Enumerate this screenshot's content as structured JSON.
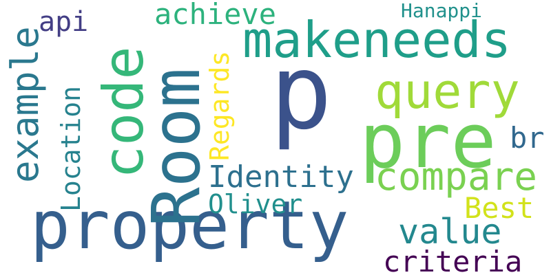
{
  "words": [
    {
      "key": "p",
      "text": "p",
      "color": "#3b528b"
    },
    {
      "key": "property",
      "text": "property",
      "color": "#355f8d"
    },
    {
      "key": "pre",
      "text": "pre",
      "color": "#6ccd5a"
    },
    {
      "key": "room",
      "text": "Room",
      "color": "#2c728e"
    },
    {
      "key": "code",
      "text": "code",
      "color": "#35b779"
    },
    {
      "key": "makeneeds",
      "text": "makeneeds",
      "color": "#1f9e89"
    },
    {
      "key": "query",
      "text": "query",
      "color": "#a0da39"
    },
    {
      "key": "example",
      "text": "example",
      "color": "#2a788e"
    },
    {
      "key": "compare",
      "text": "compare",
      "color": "#7ad151"
    },
    {
      "key": "value",
      "text": "value",
      "color": "#23888e"
    },
    {
      "key": "location",
      "text": "Location",
      "color": "#26828e"
    },
    {
      "key": "identity",
      "text": "Identity",
      "color": "#2d708e"
    },
    {
      "key": "regards",
      "text": "Regards",
      "color": "#fde725"
    },
    {
      "key": "achieve",
      "text": "achieve",
      "color": "#2db27d"
    },
    {
      "key": "api",
      "text": "api",
      "color": "#433e85"
    },
    {
      "key": "oliver",
      "text": "Oliver",
      "color": "#218f8d"
    },
    {
      "key": "best",
      "text": "Best",
      "color": "#d2e21b"
    },
    {
      "key": "criteria",
      "text": "criteria",
      "color": "#440154"
    },
    {
      "key": "br",
      "text": "br",
      "color": "#31688e"
    },
    {
      "key": "hanappi",
      "text": "Hanappi",
      "color": "#21918c"
    }
  ]
}
